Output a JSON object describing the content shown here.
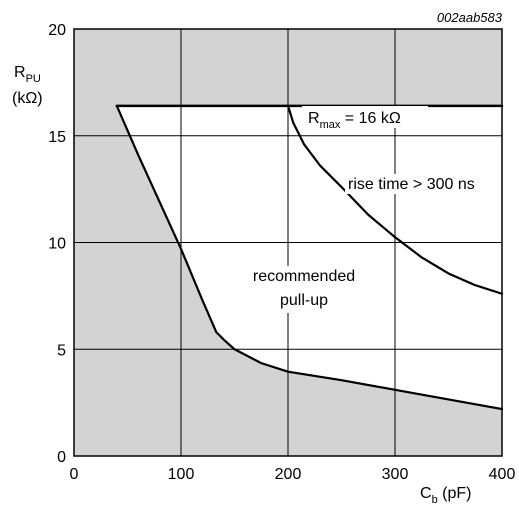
{
  "chart_data": {
    "type": "area",
    "figure_code": "002aab583",
    "ylabel_main": "R",
    "ylabel_sub": "PU",
    "ylabel_unit": "(kΩ)",
    "xlabel_main": "C",
    "xlabel_sub": "b",
    "xlabel_unit": " (pF)",
    "xlim": [
      0,
      400
    ],
    "ylim": [
      0,
      20
    ],
    "x_ticks": [
      0,
      100,
      200,
      300,
      400
    ],
    "y_ticks": [
      0,
      5,
      10,
      15,
      20
    ],
    "grid": true,
    "colors": {
      "shaded": "#d3d3d3",
      "region": "#ffffff",
      "line": "#000000"
    },
    "series": [
      {
        "name": "rmax",
        "x": [
          40,
          400
        ],
        "y": [
          16.4,
          16.4
        ]
      },
      {
        "name": "rise_time",
        "x": [
          200,
          205,
          215,
          230,
          250,
          275,
          300,
          325,
          350,
          375,
          400
        ],
        "y": [
          16.4,
          15.6,
          14.6,
          13.6,
          12.6,
          11.3,
          10.25,
          9.3,
          8.55,
          8.0,
          7.6
        ]
      },
      {
        "name": "min_pullup",
        "x": [
          40,
          60,
          80,
          100,
          120,
          133,
          140,
          150,
          175,
          200,
          250,
          300,
          350,
          400
        ],
        "y": [
          16.4,
          14.1,
          11.9,
          9.7,
          7.3,
          5.8,
          5.45,
          5.0,
          4.35,
          3.95,
          3.55,
          3.1,
          2.65,
          2.2
        ]
      }
    ],
    "annotations": {
      "rmax_main": "R",
      "rmax_sub": "max",
      "rmax_rest": " = 16 kΩ",
      "rise_time": "rise time > 300 ns",
      "region_line1": "recommended",
      "region_line2": "pull-up"
    }
  }
}
